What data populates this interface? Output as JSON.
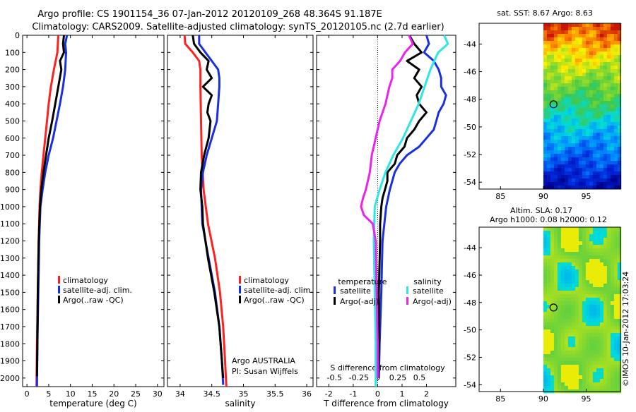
{
  "header": {
    "line1": "Argo profile: CS 1901154_36 07-Jan-2012 20120109_268 48.364S 91.187E",
    "line2": "Climatology: CARS2009. Satellite-adjusted climatology: synTS_20120105.nc (2.7d earlier)"
  },
  "colors": {
    "climatology": "#ff2020",
    "satellite": "#1a2fe0",
    "argo": "#000000",
    "satellite_s": "#2ee6e6",
    "argo_s": "#ee22ee"
  },
  "chart_data": [
    {
      "type": "line",
      "title": "",
      "xlabel": "temperature (deg C)",
      "ylabel": "",
      "xlim": [
        -1,
        31.5
      ],
      "ylim": [
        2050,
        0
      ],
      "xticks": [
        "0",
        "5",
        "10",
        "15",
        "20",
        "25",
        "30"
      ],
      "yticks": [
        "0",
        "100",
        "200",
        "300",
        "400",
        "500",
        "600",
        "700",
        "800",
        "900",
        "1000",
        "1100",
        "1200",
        "1300",
        "1400",
        "1500",
        "1600",
        "1700",
        "1800",
        "1900",
        "2000"
      ],
      "legend": [
        "climatology",
        "satellite-adj. clim.",
        "Argo(..raw -QC)"
      ],
      "series": [
        {
          "name": "climatology",
          "depth": [
            0,
            100,
            200,
            300,
            400,
            500,
            600,
            700,
            800,
            900,
            1000,
            1200,
            1500,
            1800,
            2050
          ],
          "values": [
            7.2,
            7,
            6.2,
            5.5,
            5,
            4.6,
            4.2,
            3.8,
            3.4,
            3.1,
            2.9,
            2.7,
            2.5,
            2.3,
            2.2
          ]
        },
        {
          "name": "satellite-adj. clim.",
          "depth": [
            0,
            50,
            100,
            200,
            300,
            400,
            500,
            600,
            700,
            800,
            900,
            1000,
            1200,
            1500,
            1800,
            2050
          ],
          "values": [
            9.2,
            8.8,
            9,
            8.8,
            8.3,
            7.6,
            6.8,
            6,
            5,
            4.2,
            3.6,
            3.1,
            2.8,
            2.6,
            2.4,
            2.3
          ]
        },
        {
          "name": "Argo(..raw -QC)",
          "depth": [
            0,
            50,
            100,
            150,
            200,
            300,
            400,
            500,
            600,
            700,
            800,
            900,
            1000,
            1200,
            1500,
            1800,
            1990
          ],
          "values": [
            8.5,
            8.3,
            8.5,
            7.6,
            7.9,
            7.2,
            6.5,
            5.8,
            5,
            4.4,
            3.8,
            3.3,
            3,
            2.7,
            2.5,
            2.4,
            2.3
          ]
        }
      ]
    },
    {
      "type": "line",
      "title": "",
      "xlabel": "salinity",
      "ylabel": "",
      "xlim": [
        33.8,
        36.1
      ],
      "ylim": [
        2050,
        0
      ],
      "xticks": [
        "34",
        "34.5",
        "35",
        "35.5",
        "36"
      ],
      "legend": [
        "climatology",
        "satellite-adj. clim.",
        "Argo(..raw -QC)"
      ],
      "annotations": [
        "Argo AUSTRALIA",
        "PI: Susan Wijffels"
      ],
      "series": [
        {
          "name": "climatology",
          "depth": [
            0,
            50,
            100,
            150,
            200,
            300,
            500,
            700,
            900,
            1100,
            1300,
            1500,
            1700,
            1900,
            2050
          ],
          "values": [
            34.07,
            34.08,
            34.2,
            34.3,
            34.32,
            34.32,
            34.33,
            34.34,
            34.37,
            34.44,
            34.55,
            34.63,
            34.68,
            34.71,
            34.73
          ]
        },
        {
          "name": "satellite-adj. clim.",
          "depth": [
            0,
            50,
            100,
            150,
            200,
            250,
            300,
            400,
            500,
            600,
            700,
            800,
            900,
            1100,
            1300,
            1500,
            1700,
            1900,
            2040
          ],
          "values": [
            34.3,
            34.3,
            34.4,
            34.5,
            34.6,
            34.62,
            34.62,
            34.6,
            34.58,
            34.5,
            34.42,
            34.36,
            34.33,
            34.35,
            34.45,
            34.55,
            34.62,
            34.66,
            34.68
          ]
        },
        {
          "name": "Argo(..raw -QC)",
          "depth": [
            0,
            50,
            100,
            150,
            200,
            250,
            300,
            350,
            400,
            450,
            500,
            600,
            700,
            800,
            900,
            1000,
            1100,
            1300,
            1500,
            1700,
            1900,
            2000
          ],
          "values": [
            34.2,
            34.22,
            34.32,
            34.45,
            34.42,
            34.5,
            34.36,
            34.5,
            34.45,
            34.43,
            34.48,
            34.45,
            34.38,
            34.33,
            34.32,
            34.35,
            34.36,
            34.44,
            34.54,
            34.62,
            34.66,
            34.68
          ]
        }
      ]
    },
    {
      "type": "line",
      "title": "",
      "xlabel": "T difference from climatology",
      "xlabel_top": "S difference from climatology",
      "ylabel": "",
      "xlim": [
        -2.5,
        3.2
      ],
      "ylim": [
        2050,
        0
      ],
      "xticks": [
        "-2",
        "-1",
        "0",
        "1",
        "2"
      ],
      "xticks_s": [
        "-0.5",
        "-0.25",
        "0",
        "0.25",
        "0.5"
      ],
      "legend_headers": [
        "temperature",
        "salinity"
      ],
      "legend": [
        "satellite",
        "Argo(-adj)",
        "satellite",
        "Argo(-adj)"
      ],
      "series": [
        {
          "name": "temperature satellite",
          "depth": [
            0,
            50,
            100,
            150,
            200,
            250,
            300,
            350,
            400,
            450,
            500,
            550,
            600,
            650,
            700,
            750,
            800,
            900,
            1000,
            1200,
            1500,
            1800,
            2000
          ],
          "values": [
            2,
            2.1,
            1.9,
            2.3,
            2.5,
            2.6,
            2.6,
            2.8,
            2.7,
            2.5,
            2.4,
            2.3,
            2,
            1.7,
            1.2,
            0.9,
            0.7,
            0.5,
            0.35,
            0.2,
            0.15,
            0.08,
            0.05
          ]
        },
        {
          "name": "temperature Argo(-adj)",
          "depth": [
            0,
            50,
            100,
            150,
            200,
            250,
            300,
            350,
            400,
            450,
            500,
            550,
            600,
            650,
            700,
            750,
            800,
            850,
            900,
            950,
            1000,
            1100,
            1200,
            1500,
            1800,
            2000
          ],
          "values": [
            1.3,
            1.5,
            1.8,
            1.2,
            1.7,
            1.5,
            1.8,
            1.6,
            1.7,
            2,
            1.7,
            1.5,
            1.2,
            1.1,
            0.8,
            0.7,
            0.4,
            0.4,
            0.3,
            0.2,
            0.15,
            0.1,
            0.1,
            0.05,
            0.05,
            0.02
          ]
        },
        {
          "name": "salinity satellite",
          "depth": [
            0,
            50,
            100,
            150,
            200,
            300,
            400,
            500,
            600,
            700,
            800,
            900,
            1000,
            1200,
            1500,
            1800,
            2050
          ],
          "values": [
            0.68,
            0.72,
            0.62,
            0.58,
            0.54,
            0.48,
            0.42,
            0.34,
            0.26,
            0.16,
            0.08,
            0.02,
            -0.03,
            -0.04,
            -0.03,
            -0.02,
            -0.02
          ]
        },
        {
          "name": "salinity Argo(-adj)",
          "depth": [
            0,
            50,
            100,
            150,
            200,
            250,
            300,
            400,
            500,
            600,
            700,
            800,
            900,
            950,
            1000,
            1050,
            1100,
            1200,
            1500,
            1800,
            2000
          ],
          "values": [
            0.32,
            0.36,
            0.28,
            0.23,
            0.15,
            0.15,
            0.12,
            0.08,
            0.02,
            -0.02,
            -0.06,
            -0.08,
            -0.12,
            -0.15,
            -0.17,
            -0.14,
            -0.05,
            -0.02,
            -0.01,
            0,
            0
          ]
        }
      ]
    },
    {
      "type": "heatmap",
      "title": "sat. SST: 8.67 Argo: 8.63",
      "xlim": [
        82.5,
        99
      ],
      "ylim": [
        -54.5,
        -42.5
      ],
      "xticks": [
        "85",
        "90",
        "95"
      ],
      "yticks": [
        "-44",
        "-46",
        "-48",
        "-50",
        "-52",
        "-54"
      ],
      "marker": {
        "lon": 91.187,
        "lat": -48.364
      }
    },
    {
      "type": "heatmap",
      "title": "Altim. SLA: 0.17",
      "subtitle": "Argo h1000: 0.08 h2000: 0.12",
      "xlim": [
        82.5,
        99
      ],
      "ylim": [
        -54.5,
        -42.5
      ],
      "xticks": [
        "85",
        "90",
        "95"
      ],
      "yticks": [
        "-44",
        "-46",
        "-48",
        "-50",
        "-52",
        "-54"
      ],
      "marker": {
        "lon": 91.187,
        "lat": -48.364
      }
    }
  ],
  "footer": {
    "credit": "©IMOS 10-Jan-2012 17:03:24"
  }
}
